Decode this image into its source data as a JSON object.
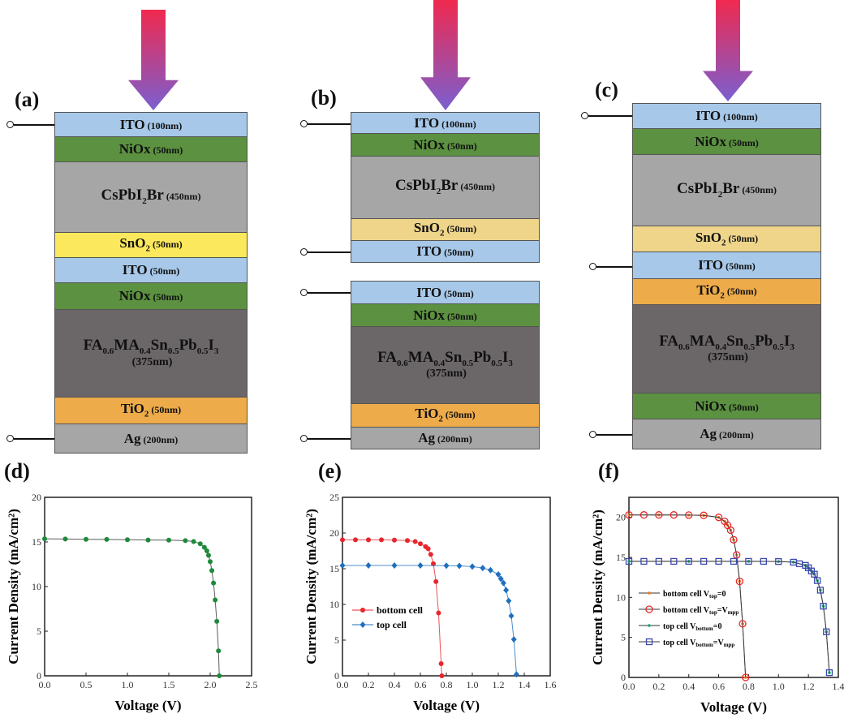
{
  "panels": [
    "(a)",
    "(b)",
    "(c)",
    "(d)",
    "(e)",
    "(f)"
  ],
  "colors": {
    "ITO": "#a7c8e8",
    "NiOx": "#5b9140",
    "CsPbI2Br": "#a6a6a6",
    "SnO2_a": "#fbe85c",
    "SnO2": "#efd58a",
    "TiO2": "#eeab4a",
    "FA": "#6b6667",
    "Ag": "#a6a6a6",
    "arrow_top": "#f0294f",
    "arrow_bottom": "#7a5fd0"
  },
  "stacks": {
    "a": [
      {
        "name": [
          [
            "ITO",
            ""
          ]
        ],
        "thick": "(100nm)",
        "color": "#a7c8e8"
      },
      {
        "name": [
          [
            "NiOx",
            ""
          ]
        ],
        "thick": "(50nm)",
        "color": "#5b9140"
      },
      {
        "name": [
          [
            "CsPbI",
            ""
          ],
          [
            "2",
            "sub"
          ],
          [
            "Br",
            ""
          ]
        ],
        "thick": "(450nm)",
        "color": "#a6a6a6"
      },
      {
        "name": [
          [
            "SnO",
            ""
          ],
          [
            "2",
            "sub"
          ]
        ],
        "thick": "(50nm)",
        "color": "#fbe85c"
      },
      {
        "name": [
          [
            "ITO",
            ""
          ]
        ],
        "thick": "(50nm)",
        "color": "#a7c8e8"
      },
      {
        "name": [
          [
            "NiOx",
            ""
          ]
        ],
        "thick": "(50nm)",
        "color": "#5b9140"
      },
      {
        "name": [
          [
            "FA",
            ""
          ],
          [
            "0.6",
            "sub"
          ],
          [
            "MA",
            ""
          ],
          [
            "0.4",
            "sub"
          ],
          [
            "Sn",
            ""
          ],
          [
            "0.5",
            "sub"
          ],
          [
            "Pb",
            ""
          ],
          [
            "0.5",
            "sub"
          ],
          [
            "I",
            ""
          ],
          [
            "3",
            "sub"
          ]
        ],
        "thick": "(375nm)",
        "color": "#6b6667"
      },
      {
        "name": [
          [
            "TiO",
            ""
          ],
          [
            "2",
            "sub"
          ]
        ],
        "thick": "(50nm)",
        "color": "#eeab4a"
      },
      {
        "name": [
          [
            "Ag",
            ""
          ]
        ],
        "thick": "(200nm)",
        "color": "#a6a6a6"
      }
    ],
    "b": [
      {
        "name": [
          [
            "ITO",
            ""
          ]
        ],
        "thick": "(100nm)",
        "color": "#a7c8e8"
      },
      {
        "name": [
          [
            "NiOx",
            ""
          ]
        ],
        "thick": "(50nm)",
        "color": "#5b9140"
      },
      {
        "name": [
          [
            "CsPbI",
            ""
          ],
          [
            "2",
            "sub"
          ],
          [
            "Br",
            ""
          ]
        ],
        "thick": "(450nm)",
        "color": "#a6a6a6"
      },
      {
        "name": [
          [
            "SnO",
            ""
          ],
          [
            "2",
            "sub"
          ]
        ],
        "thick": "(50nm)",
        "color": "#efd58a"
      },
      {
        "name": [
          [
            "ITO",
            ""
          ]
        ],
        "thick": "(50nm)",
        "color": "#a7c8e8"
      },
      {
        "name": [
          [
            "ITO",
            ""
          ]
        ],
        "thick": "(50nm)",
        "color": "#a7c8e8"
      },
      {
        "name": [
          [
            "NiOx",
            ""
          ]
        ],
        "thick": "(50nm)",
        "color": "#5b9140"
      },
      {
        "name": [
          [
            "FA",
            ""
          ],
          [
            "0.6",
            "sub"
          ],
          [
            "MA",
            ""
          ],
          [
            "0.4",
            "sub"
          ],
          [
            "Sn",
            ""
          ],
          [
            "0.5",
            "sub"
          ],
          [
            "Pb",
            ""
          ],
          [
            "0.5",
            "sub"
          ],
          [
            "I",
            ""
          ],
          [
            "3",
            "sub"
          ]
        ],
        "thick": "(375nm)",
        "color": "#6b6667"
      },
      {
        "name": [
          [
            "TiO",
            ""
          ],
          [
            "2",
            "sub"
          ]
        ],
        "thick": "(50nm)",
        "color": "#eeab4a"
      },
      {
        "name": [
          [
            "Ag",
            ""
          ]
        ],
        "thick": "(200nm)",
        "color": "#a6a6a6"
      }
    ],
    "c": [
      {
        "name": [
          [
            "ITO",
            ""
          ]
        ],
        "thick": "(100nm)",
        "color": "#a7c8e8"
      },
      {
        "name": [
          [
            "NiOx",
            ""
          ]
        ],
        "thick": "(50nm)",
        "color": "#5b9140"
      },
      {
        "name": [
          [
            "CsPbI",
            ""
          ],
          [
            "2",
            "sub"
          ],
          [
            "Br",
            ""
          ]
        ],
        "thick": "(450nm)",
        "color": "#a6a6a6"
      },
      {
        "name": [
          [
            "SnO",
            ""
          ],
          [
            "2",
            "sub"
          ]
        ],
        "thick": "(50nm)",
        "color": "#efd58a"
      },
      {
        "name": [
          [
            "ITO",
            ""
          ]
        ],
        "thick": "(50nm)",
        "color": "#a7c8e8"
      },
      {
        "name": [
          [
            "TiO",
            ""
          ],
          [
            "2",
            "sub"
          ]
        ],
        "thick": "(50nm)",
        "color": "#eeab4a"
      },
      {
        "name": [
          [
            "FA",
            ""
          ],
          [
            "0.6",
            "sub"
          ],
          [
            "MA",
            ""
          ],
          [
            "0.4",
            "sub"
          ],
          [
            "Sn",
            ""
          ],
          [
            "0.5",
            "sub"
          ],
          [
            "Pb",
            ""
          ],
          [
            "0.5",
            "sub"
          ],
          [
            "I",
            ""
          ],
          [
            "3",
            "sub"
          ]
        ],
        "thick": "(375nm)",
        "color": "#6b6667"
      },
      {
        "name": [
          [
            "NiOx",
            ""
          ]
        ],
        "thick": "(50nm)",
        "color": "#5b9140"
      },
      {
        "name": [
          [
            "Ag",
            ""
          ]
        ],
        "thick": "(200nm)",
        "color": "#a6a6a6"
      }
    ]
  },
  "chart_data": [
    {
      "type": "line",
      "panel": "(d)",
      "xlabel": "Voltage (V)",
      "ylabel": "Current Density (mA/cm²)",
      "xlim": [
        0,
        2.5
      ],
      "ylim": [
        0,
        20
      ],
      "xticks": [
        "0.0",
        "0.5",
        "1.0",
        "1.5",
        "2.0",
        "2.5"
      ],
      "yticks": [
        "0",
        "5",
        "10",
        "15",
        "20"
      ],
      "legend": "none",
      "series": [
        {
          "color": "#1e8a3a",
          "marker": "circle",
          "x": [
            0,
            0.25,
            0.5,
            0.75,
            1.0,
            1.25,
            1.5,
            1.7,
            1.8,
            1.88,
            1.93,
            1.96,
            1.98,
            2.0,
            2.02,
            2.04,
            2.06,
            2.08,
            2.1,
            2.11
          ],
          "y": [
            15.35,
            15.33,
            15.3,
            15.28,
            15.25,
            15.22,
            15.2,
            15.15,
            15.05,
            14.8,
            14.4,
            14.0,
            13.5,
            12.8,
            11.8,
            10.4,
            8.5,
            6.1,
            2.8,
            0
          ]
        }
      ]
    },
    {
      "type": "line",
      "panel": "(e)",
      "xlabel": "Voltage (V)",
      "ylabel": "Current Density (mA/cm²)",
      "xlim": [
        0,
        1.6
      ],
      "ylim": [
        0,
        25
      ],
      "xticks": [
        "0.0",
        "0.2",
        "0.4",
        "0.6",
        "0.8",
        "1.0",
        "1.2",
        "1.4",
        "1.6"
      ],
      "yticks": [
        "0",
        "5",
        "10",
        "15",
        "20",
        "25"
      ],
      "legend": "lower-left",
      "series": [
        {
          "name": "bottom cell",
          "color": "#e8262c",
          "marker": "circle",
          "x": [
            0,
            0.1,
            0.2,
            0.3,
            0.4,
            0.5,
            0.56,
            0.6,
            0.64,
            0.66,
            0.68,
            0.7,
            0.72,
            0.74,
            0.76,
            0.765
          ],
          "y": [
            19.05,
            19.05,
            19.05,
            19.05,
            19.0,
            18.95,
            18.8,
            18.5,
            18.1,
            17.8,
            17.0,
            15.7,
            13.2,
            8.8,
            1.7,
            0
          ]
        },
        {
          "name": "top cell",
          "color": "#1f6fbf",
          "marker": "diamond",
          "x": [
            0,
            0.2,
            0.4,
            0.6,
            0.8,
            0.9,
            1.0,
            1.08,
            1.14,
            1.2,
            1.22,
            1.24,
            1.26,
            1.28,
            1.3,
            1.32,
            1.34
          ],
          "y": [
            15.45,
            15.45,
            15.45,
            15.45,
            15.42,
            15.4,
            15.3,
            15.1,
            14.8,
            14.2,
            13.6,
            13.0,
            12.0,
            10.5,
            8.4,
            5.1,
            0.2
          ]
        }
      ]
    },
    {
      "type": "line",
      "panel": "(f)",
      "xlabel": "Voltage (V)",
      "ylabel": "Current Density (mA/cm²)",
      "xlim": [
        0,
        1.4
      ],
      "ylim": [
        0,
        22.5
      ],
      "xticks": [
        "0.0",
        "0.2",
        "0.4",
        "0.6",
        "0.8",
        "1.0",
        "1.2",
        "1.4"
      ],
      "yticks": [
        "0",
        "5",
        "10",
        "15",
        "20"
      ],
      "legend": "lower-left",
      "series": [
        {
          "name": [
            [
              "bottom cell V",
              ""
            ],
            [
              "top",
              "sub"
            ],
            [
              "=0",
              ""
            ]
          ],
          "color": "#f07a1a",
          "marker": "star",
          "x": [
            0,
            0.2,
            0.4,
            0.5,
            0.6,
            0.64,
            0.66,
            0.68,
            0.7,
            0.72,
            0.74,
            0.76,
            0.78
          ],
          "y": [
            20.3,
            20.3,
            20.28,
            20.25,
            20.0,
            19.5,
            19.0,
            18.4,
            17.2,
            15.3,
            12.0,
            6.7,
            0
          ]
        },
        {
          "name": [
            [
              "bottom cell V",
              ""
            ],
            [
              "top",
              "sub"
            ],
            [
              "=V",
              ""
            ],
            [
              "mpp",
              "sub"
            ]
          ],
          "color": "#e8262c",
          "marker": "open-circle",
          "x": [
            0,
            0.1,
            0.2,
            0.3,
            0.4,
            0.5,
            0.6,
            0.64,
            0.66,
            0.68,
            0.7,
            0.72,
            0.74,
            0.76,
            0.78
          ],
          "y": [
            20.3,
            20.3,
            20.3,
            20.3,
            20.28,
            20.25,
            20.0,
            19.5,
            19.0,
            18.4,
            17.2,
            15.3,
            12.0,
            6.7,
            0
          ]
        },
        {
          "name": [
            [
              "top cell V",
              ""
            ],
            [
              "bottom",
              "sub"
            ],
            [
              "=0",
              ""
            ]
          ],
          "color": "#1aa37a",
          "marker": "star",
          "x": [
            0,
            0.4,
            0.8,
            1.0,
            1.1,
            1.18,
            1.2,
            1.22,
            1.24,
            1.26,
            1.28,
            1.3,
            1.32,
            1.34
          ],
          "y": [
            14.5,
            14.5,
            14.5,
            14.48,
            14.4,
            14.0,
            13.7,
            13.3,
            12.9,
            12.1,
            10.9,
            8.9,
            5.7,
            0.6
          ]
        },
        {
          "name": [
            [
              "top cell V",
              ""
            ],
            [
              "bottom",
              "sub"
            ],
            [
              "=V",
              ""
            ],
            [
              "mpp",
              "sub"
            ]
          ],
          "color": "#3a47b0",
          "marker": "open-square",
          "x": [
            0,
            0.1,
            0.2,
            0.3,
            0.4,
            0.5,
            0.6,
            0.7,
            0.8,
            0.9,
            1.0,
            1.1,
            1.14,
            1.18,
            1.2,
            1.22,
            1.24,
            1.26,
            1.28,
            1.3,
            1.32,
            1.34
          ],
          "y": [
            14.5,
            14.5,
            14.5,
            14.5,
            14.5,
            14.5,
            14.5,
            14.5,
            14.5,
            14.5,
            14.48,
            14.4,
            14.2,
            14.0,
            13.7,
            13.3,
            12.9,
            12.1,
            10.9,
            8.9,
            5.7,
            0.6
          ]
        }
      ]
    }
  ]
}
